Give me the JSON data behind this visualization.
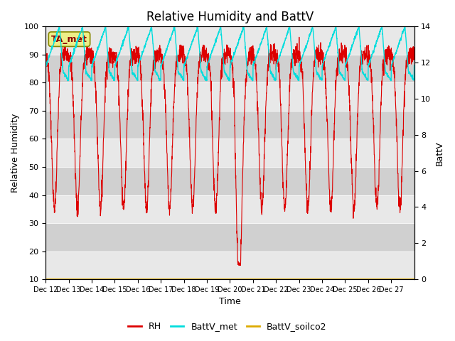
{
  "title": "Relative Humidity and BattV",
  "ylabel_left": "Relative Humidity",
  "ylabel_right": "BattV",
  "xlabel": "Time",
  "ylim_left": [
    10,
    100
  ],
  "ylim_right": [
    0,
    14
  ],
  "yticks_left": [
    10,
    20,
    30,
    40,
    50,
    60,
    70,
    80,
    90,
    100
  ],
  "yticks_right": [
    0,
    2,
    4,
    6,
    8,
    10,
    12,
    14
  ],
  "x_tick_labels": [
    "Dec 12",
    "Dec 13",
    "Dec 14",
    "Dec 15",
    "Dec 16",
    "Dec 17",
    "Dec 18",
    "Dec 19",
    "Dec 20",
    "Dec 21",
    "Dec 22",
    "Dec 23",
    "Dec 24",
    "Dec 25",
    "Dec 26",
    "Dec 27"
  ],
  "color_rh": "#dd0000",
  "color_battv_met": "#00dddd",
  "color_battv_soilco2": "#ddaa00",
  "legend_labels": [
    "RH",
    "BattV_met",
    "BattV_soilco2"
  ],
  "annotation_text": "TA_met",
  "bg_color": "#e8e8e8",
  "band_light": "#e8e8e8",
  "band_dark": "#d0d0d0",
  "title_fontsize": 12,
  "n_days": 16,
  "n_per_day": 144
}
